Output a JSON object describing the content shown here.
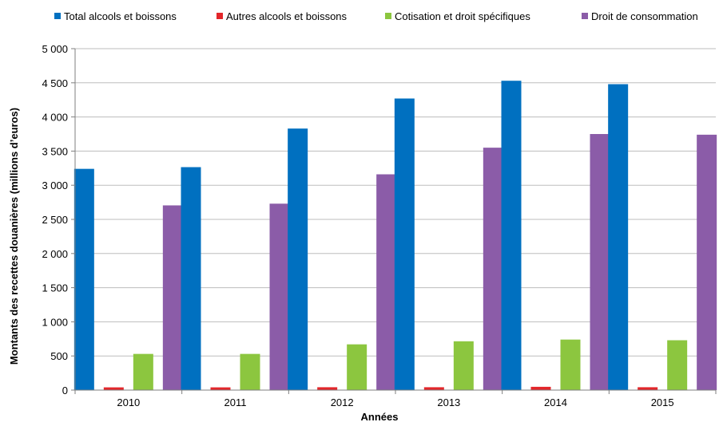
{
  "chart_data": {
    "type": "bar",
    "categories": [
      "2010",
      "2011",
      "2012",
      "2013",
      "2014",
      "2015"
    ],
    "series": [
      {
        "name": "Total alcools et boissons",
        "color": "#0070C0",
        "values": [
          3240,
          3265,
          3830,
          4270,
          4530,
          4480
        ]
      },
      {
        "name": "Autres alcools et boissons",
        "color": "#E3262A",
        "values": [
          40,
          40,
          42,
          42,
          48,
          42
        ]
      },
      {
        "name": "Cotisation et droit spécifiques",
        "color": "#8CC63F",
        "values": [
          530,
          530,
          670,
          715,
          740,
          730
        ]
      },
      {
        "name": "Droit de consommation",
        "color": "#8B5CA8",
        "values": [
          2705,
          2730,
          3160,
          3550,
          3750,
          3740
        ]
      }
    ],
    "xlabel": "Années",
    "ylabel": "Montants des recettes douanières (millions d’euros)",
    "ylim": [
      0,
      5000
    ],
    "yticks": [
      "0",
      "500",
      "1 000",
      "1 500",
      "2 000",
      "2 500",
      "3 000",
      "3 500",
      "4 000",
      "4 500",
      "5 000"
    ],
    "grid": true,
    "legend_position": "top"
  }
}
